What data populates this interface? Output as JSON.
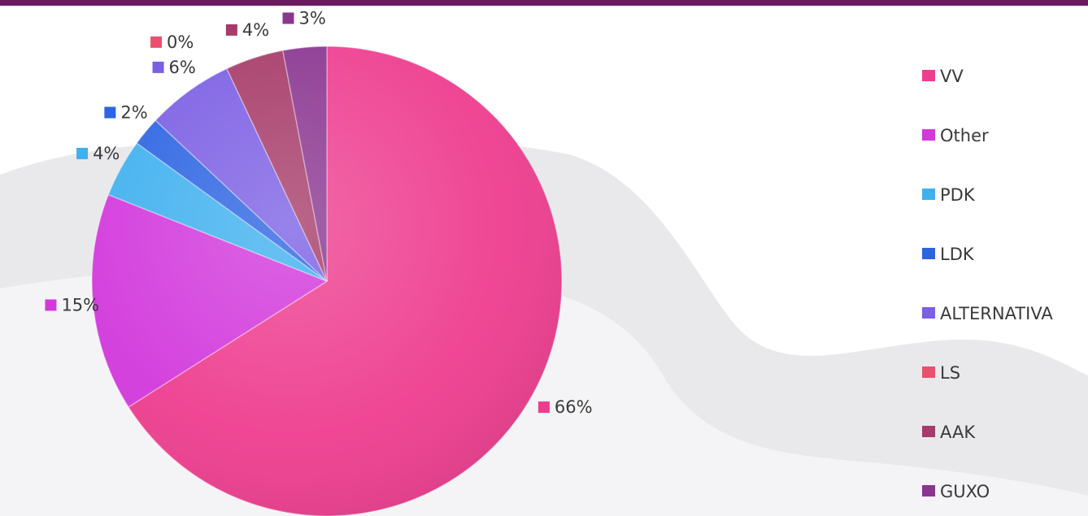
{
  "chart_data": {
    "type": "pie",
    "title": "",
    "legend_position": "right",
    "categories": [
      "VV",
      "Other",
      "PDK",
      "LDK",
      "ALTERNATIVA",
      "LS",
      "AAK",
      "GUXO"
    ],
    "values": [
      66,
      15,
      4,
      2,
      6,
      0,
      4,
      3
    ],
    "data_labels": [
      "66%",
      "15%",
      "4%",
      "2%",
      "6%",
      "0%",
      "4%",
      "3%"
    ],
    "colors": [
      "#ee3d8f",
      "#d238dc",
      "#3fb0ef",
      "#2c64e2",
      "#7b5fe4",
      "#e9506c",
      "#a63a68",
      "#8a3590"
    ]
  }
}
